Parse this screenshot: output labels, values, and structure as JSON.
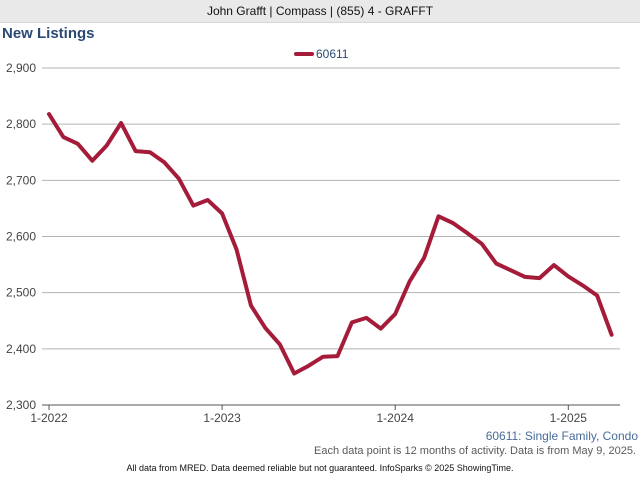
{
  "header": {
    "agent_text": "John Grafft | Compass | (855) 4 - GRAFFT"
  },
  "footer": {
    "series_label": "60611: Single Family, Condo",
    "data_note": "Each data point is 12 months of activity. Data is from May 9, 2025.",
    "source": "All data from MRED. Data deemed reliable but not guaranteed. InfoSparks © 2025 ShowingTime."
  },
  "colors": {
    "series": "#a51c3a",
    "title": "#2b4a73",
    "grid": "#b3b3b3"
  },
  "chart_data": {
    "type": "line",
    "title": "New Listings",
    "xlabel": "",
    "ylabel": "",
    "legend_position": "top-center",
    "grid": true,
    "ylim": [
      2300,
      2900
    ],
    "yticks": [
      2300,
      2400,
      2500,
      2600,
      2700,
      2800,
      2900
    ],
    "ytick_labels": [
      "2,300",
      "2,400",
      "2,500",
      "2,600",
      "2,700",
      "2,800",
      "2,900"
    ],
    "xtick_labels": [
      "1-2022",
      "1-2023",
      "1-2024",
      "1-2025"
    ],
    "x": [
      "2022-01",
      "2022-02",
      "2022-03",
      "2022-04",
      "2022-05",
      "2022-06",
      "2022-07",
      "2022-08",
      "2022-09",
      "2022-10",
      "2022-11",
      "2022-12",
      "2023-01",
      "2023-02",
      "2023-03",
      "2023-04",
      "2023-05",
      "2023-06",
      "2023-07",
      "2023-08",
      "2023-09",
      "2023-10",
      "2023-11",
      "2023-12",
      "2024-01",
      "2024-02",
      "2024-03",
      "2024-04",
      "2024-05",
      "2024-06",
      "2024-07",
      "2024-08",
      "2024-09",
      "2024-10",
      "2024-11",
      "2024-12",
      "2025-01",
      "2025-02",
      "2025-03",
      "2025-04"
    ],
    "series": [
      {
        "name": "60611",
        "values": [
          2818,
          2777,
          2765,
          2735,
          2762,
          2802,
          2752,
          2750,
          2732,
          2703,
          2655,
          2665,
          2641,
          2577,
          2477,
          2437,
          2408,
          2356,
          2370,
          2386,
          2387,
          2447,
          2455,
          2436,
          2462,
          2520,
          2562,
          2636,
          2624,
          2606,
          2587,
          2552,
          2540,
          2528,
          2526,
          2549,
          2529,
          2513,
          2495,
          2425
        ]
      }
    ]
  }
}
